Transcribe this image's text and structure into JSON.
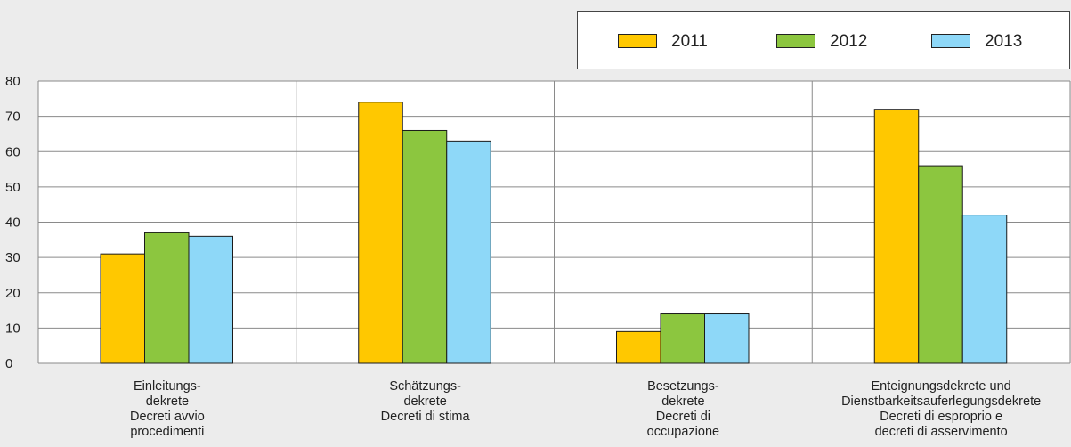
{
  "chart_data": {
    "type": "bar",
    "categories": [
      [
        "Einleitungs-",
        "dekrete",
        "Decreti avvio",
        "procedimenti"
      ],
      [
        "Schätzungs-",
        "dekrete",
        "Decreti di stima"
      ],
      [
        "Besetzungs-",
        "dekrete",
        "Decreti di",
        "occupazione"
      ],
      [
        "Enteignungsdekrete und",
        "Dienstbarkeitsauferlegungsdekrete",
        "Decreti di esproprio e",
        "decreti di asservimento"
      ]
    ],
    "series": [
      {
        "name": "2011",
        "color": "#ffc800",
        "values": [
          31,
          74,
          9,
          72
        ]
      },
      {
        "name": "2012",
        "color": "#8cc63f",
        "values": [
          37,
          66,
          14,
          56
        ]
      },
      {
        "name": "2013",
        "color": "#8ed8f8",
        "values": [
          36,
          63,
          14,
          42
        ]
      }
    ],
    "ylim": [
      0,
      80
    ],
    "yticks": [
      0,
      10,
      20,
      30,
      40,
      50,
      60,
      70,
      80
    ],
    "grid": true,
    "legend_position": "top-right"
  }
}
